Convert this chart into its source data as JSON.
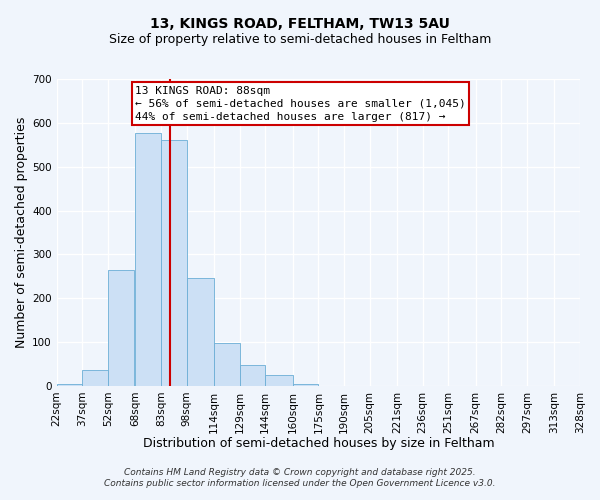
{
  "title_line1": "13, KINGS ROAD, FELTHAM, TW13 5AU",
  "title_line2": "Size of property relative to semi-detached houses in Feltham",
  "xlabel": "Distribution of semi-detached houses by size in Feltham",
  "ylabel": "Number of semi-detached properties",
  "bar_left_edges": [
    22,
    37,
    52,
    68,
    83,
    98,
    114,
    129,
    144,
    160,
    175,
    190,
    205,
    221,
    236,
    251,
    267,
    282,
    297,
    313
  ],
  "bar_widths": [
    15,
    15,
    15,
    15,
    15,
    16,
    15,
    15,
    16,
    15,
    15,
    15,
    16,
    15,
    15,
    16,
    15,
    15,
    16,
    15
  ],
  "bar_heights": [
    5,
    37,
    265,
    577,
    560,
    245,
    98,
    48,
    25,
    5,
    0,
    0,
    0,
    0,
    0,
    0,
    0,
    0,
    0,
    0
  ],
  "bar_color": "#cce0f5",
  "bar_edgecolor": "#6baed6",
  "vline_x": 88,
  "vline_color": "#cc0000",
  "ylim": [
    0,
    700
  ],
  "yticks": [
    0,
    100,
    200,
    300,
    400,
    500,
    600,
    700
  ],
  "xtick_labels": [
    "22sqm",
    "37sqm",
    "52sqm",
    "68sqm",
    "83sqm",
    "98sqm",
    "114sqm",
    "129sqm",
    "144sqm",
    "160sqm",
    "175sqm",
    "190sqm",
    "205sqm",
    "221sqm",
    "236sqm",
    "251sqm",
    "267sqm",
    "282sqm",
    "297sqm",
    "313sqm",
    "328sqm"
  ],
  "annotation_title": "13 KINGS ROAD: 88sqm",
  "annotation_line2": "← 56% of semi-detached houses are smaller (1,045)",
  "annotation_line3": "44% of semi-detached houses are larger (817) →",
  "annotation_box_color": "#ffffff",
  "annotation_box_edgecolor": "#cc0000",
  "footer_line1": "Contains HM Land Registry data © Crown copyright and database right 2025.",
  "footer_line2": "Contains public sector information licensed under the Open Government Licence v3.0.",
  "bg_color": "#f0f5fc",
  "plot_bg_color": "#f0f5fc",
  "grid_color": "#ffffff",
  "title_fontsize": 10,
  "subtitle_fontsize": 9,
  "axis_label_fontsize": 9,
  "tick_fontsize": 7.5,
  "annotation_fontsize": 8,
  "footer_fontsize": 6.5
}
